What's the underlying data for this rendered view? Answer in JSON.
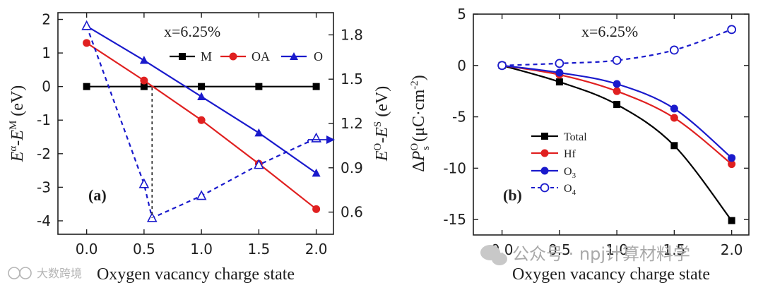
{
  "chart_data": [
    {
      "panel": "a",
      "type": "line",
      "panel_label": "(a)",
      "annotation": "x=6.25%",
      "xlabel": "Oxygen vacancy charge state",
      "ylabel_left": "E^α - E^M (eV)",
      "ylabel_right": "E^O - E^S (eV)",
      "xlim": [
        -0.25,
        2.15
      ],
      "ylim_left": [
        -4.4,
        2.2
      ],
      "ylim_right": [
        0.45,
        1.95
      ],
      "x_ticks": [
        "0.0",
        "0.5",
        "1.0",
        "1.5",
        "2.0"
      ],
      "y_ticks_left": [
        "2",
        "1",
        "0",
        "-1",
        "-2",
        "-3",
        "-4"
      ],
      "y_ticks_right": [
        "1.8",
        "1.5",
        "1.2",
        "0.9",
        "0.6"
      ],
      "legend": [
        "M",
        "OA",
        "O"
      ],
      "colors": {
        "M": "#000000",
        "OA": "#e02020",
        "O": "#1a1acc",
        "right": "#1a1acc"
      },
      "series": [
        {
          "name": "M",
          "axis": "left",
          "x": [
            0.0,
            0.5,
            1.0,
            1.5,
            2.0
          ],
          "values": [
            0.0,
            0.0,
            0.0,
            0.0,
            0.0
          ]
        },
        {
          "name": "OA",
          "axis": "left",
          "x": [
            0.0,
            0.5,
            1.0,
            1.5,
            2.0
          ],
          "values": [
            1.3,
            0.18,
            -1.0,
            -2.3,
            -3.65
          ]
        },
        {
          "name": "O",
          "axis": "left",
          "x": [
            0.0,
            0.5,
            1.0,
            1.5,
            2.0
          ],
          "values": [
            1.8,
            0.78,
            -0.3,
            -1.38,
            -2.58
          ]
        },
        {
          "name": "E^O - E^S",
          "axis": "right",
          "style": "dashed-open-triangle",
          "x": [
            0.0,
            0.5,
            0.57,
            1.0,
            1.5,
            2.0
          ],
          "values": [
            1.86,
            0.79,
            0.56,
            0.71,
            0.92,
            1.1
          ]
        }
      ],
      "vline_x": 0.57
    },
    {
      "panel": "b",
      "type": "line",
      "panel_label": "(b)",
      "annotation": "x=6.25%",
      "xlabel": "Oxygen vacancy charge state",
      "ylabel": "ΔP_s^O (μC·cm^-2)",
      "xlim": [
        -0.25,
        2.15
      ],
      "ylim": [
        -16.5,
        5
      ],
      "x_ticks": [
        "0.0",
        "0.5",
        "1.0",
        "1.5",
        "2.0"
      ],
      "y_ticks": [
        "5",
        "0",
        "-5",
        "-10",
        "-15"
      ],
      "legend": [
        "Total",
        "Hf",
        "O3",
        "O4"
      ],
      "colors": {
        "Total": "#000000",
        "Hf": "#e02020",
        "O3": "#1a1acc",
        "O4": "#1a1acc"
      },
      "series": [
        {
          "name": "Total",
          "x": [
            0.0,
            0.5,
            1.0,
            1.5,
            2.0
          ],
          "values": [
            0.0,
            -1.6,
            -3.8,
            -7.8,
            -15.1
          ]
        },
        {
          "name": "Hf",
          "x": [
            0.0,
            0.5,
            1.0,
            1.5,
            2.0
          ],
          "values": [
            0.0,
            -0.9,
            -2.5,
            -5.1,
            -9.6
          ]
        },
        {
          "name": "O3",
          "x": [
            0.0,
            0.5,
            1.0,
            1.5,
            2.0
          ],
          "values": [
            0.0,
            -0.7,
            -1.8,
            -4.2,
            -9.0
          ]
        },
        {
          "name": "O4",
          "style": "dashed-open-circle",
          "x": [
            0.0,
            0.5,
            1.0,
            1.5,
            2.0
          ],
          "values": [
            0.0,
            0.2,
            0.5,
            1.5,
            3.5
          ]
        }
      ]
    }
  ],
  "watermarks": {
    "left": "大数跨境",
    "right": "公众号 · npj计算材料学"
  }
}
